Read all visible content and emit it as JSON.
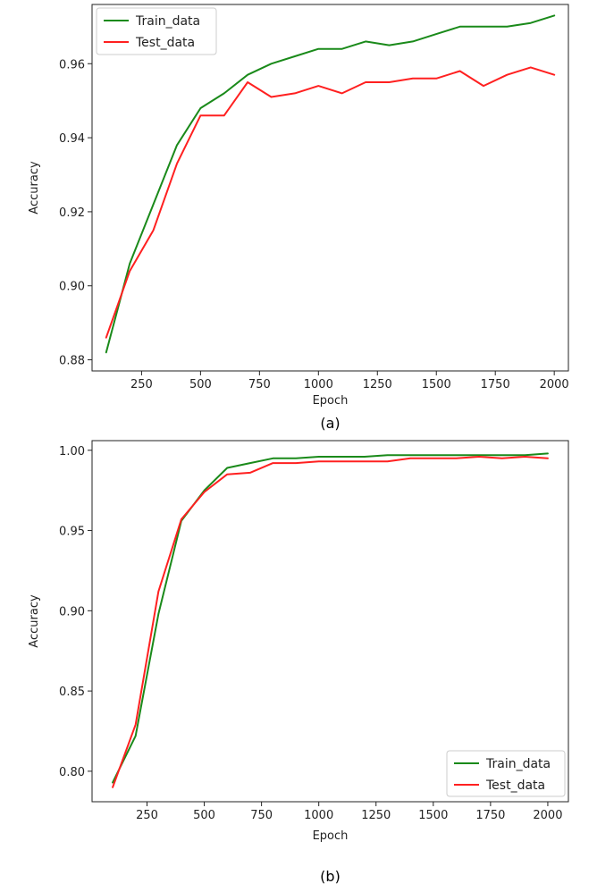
{
  "chart_data": [
    {
      "type": "line",
      "caption": "(a)",
      "xlabel": "Epoch",
      "ylabel": "Accuracy",
      "xlim": [
        40,
        2060
      ],
      "ylim": [
        0.877,
        0.976
      ],
      "xticks": [
        250,
        500,
        750,
        1000,
        1250,
        1500,
        1750,
        2000
      ],
      "yticks": [
        0.88,
        0.9,
        0.92,
        0.94,
        0.96
      ],
      "ytick_labels": [
        "0.88",
        "0.90",
        "0.92",
        "0.94",
        "0.96"
      ],
      "grid": false,
      "legend_position": "top-left",
      "x": [
        100,
        200,
        300,
        400,
        500,
        600,
        700,
        800,
        900,
        1000,
        1100,
        1200,
        1300,
        1400,
        1500,
        1600,
        1700,
        1800,
        1900,
        2000
      ],
      "series": [
        {
          "name": "Train_data",
          "color": "#1a8a1a",
          "values": [
            0.882,
            0.906,
            0.922,
            0.938,
            0.948,
            0.952,
            0.957,
            0.96,
            0.962,
            0.964,
            0.964,
            0.966,
            0.965,
            0.966,
            0.968,
            0.97,
            0.97,
            0.97,
            0.971,
            0.973
          ]
        },
        {
          "name": "Test_data",
          "color": "#ff2020",
          "values": [
            0.886,
            0.904,
            0.915,
            0.933,
            0.946,
            0.946,
            0.955,
            0.951,
            0.952,
            0.954,
            0.952,
            0.955,
            0.955,
            0.956,
            0.956,
            0.958,
            0.954,
            0.957,
            0.959,
            0.957
          ]
        }
      ]
    },
    {
      "type": "line",
      "caption": "(b)",
      "xlabel": "Epoch",
      "ylabel": "Accuracy",
      "xlim": [
        10,
        2090
      ],
      "ylim": [
        0.781,
        1.006
      ],
      "xticks": [
        250,
        500,
        750,
        1000,
        1250,
        1500,
        1750,
        2000
      ],
      "yticks": [
        0.8,
        0.85,
        0.9,
        0.95,
        1.0
      ],
      "ytick_labels": [
        "0.80",
        "0.85",
        "0.90",
        "0.95",
        "1.00"
      ],
      "grid": false,
      "legend_position": "bottom-right",
      "x": [
        100,
        200,
        300,
        400,
        500,
        600,
        700,
        800,
        900,
        1000,
        1100,
        1200,
        1300,
        1400,
        1500,
        1600,
        1700,
        1800,
        1900,
        2000
      ],
      "series": [
        {
          "name": "Train_data",
          "color": "#1a8a1a",
          "values": [
            0.793,
            0.822,
            0.898,
            0.956,
            0.975,
            0.989,
            0.992,
            0.995,
            0.995,
            0.996,
            0.996,
            0.996,
            0.997,
            0.997,
            0.997,
            0.997,
            0.997,
            0.997,
            0.997,
            0.998
          ]
        },
        {
          "name": "Test_data",
          "color": "#ff2020",
          "values": [
            0.79,
            0.829,
            0.912,
            0.957,
            0.974,
            0.985,
            0.986,
            0.992,
            0.992,
            0.993,
            0.993,
            0.993,
            0.993,
            0.995,
            0.995,
            0.995,
            0.996,
            0.995,
            0.996,
            0.995
          ]
        }
      ]
    }
  ]
}
